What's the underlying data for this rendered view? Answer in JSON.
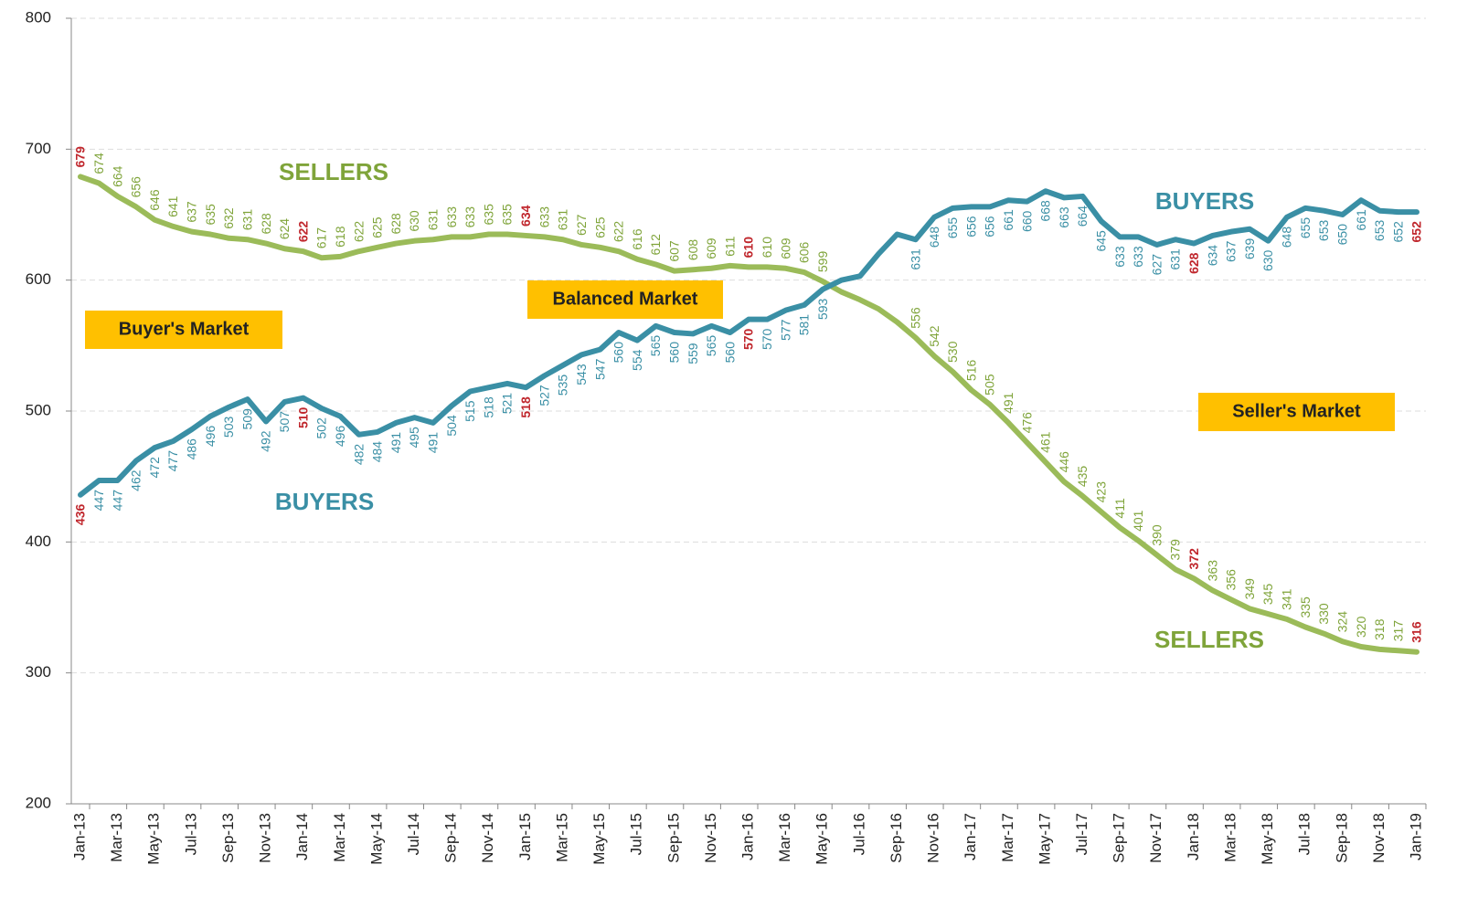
{
  "chart_data": {
    "type": "line",
    "categories": [
      "Jan-13",
      null,
      "Mar-13",
      null,
      "May-13",
      null,
      "Jul-13",
      null,
      "Sep-13",
      null,
      "Nov-13",
      null,
      "Jan-14",
      null,
      "Mar-14",
      null,
      "May-14",
      null,
      "Jul-14",
      null,
      "Sep-14",
      null,
      "Nov-14",
      null,
      "Jan-15",
      null,
      "Mar-15",
      null,
      "May-15",
      null,
      "Jul-15",
      null,
      "Sep-15",
      null,
      "Nov-15",
      null,
      "Jan-16",
      null,
      "Mar-16",
      null,
      "May-16",
      null,
      "Jul-16",
      null,
      "Sep-16",
      null,
      "Nov-16",
      null,
      "Jan-17",
      null,
      "Mar-17",
      null,
      "May-17",
      null,
      "Jul-17",
      null,
      "Sep-17",
      null,
      "Nov-17",
      null,
      "Jan-18",
      null,
      "Mar-18",
      null,
      "May-18",
      null,
      "Jul-18",
      null,
      "Sep-18",
      null,
      "Nov-18",
      null,
      "Jan-19"
    ],
    "series": [
      {
        "name": "SELLERS",
        "color": "#9bbb59",
        "label_color": "#7fa43a",
        "values": [
          679,
          674,
          664,
          656,
          646,
          641,
          637,
          635,
          632,
          631,
          628,
          624,
          622,
          617,
          618,
          622,
          625,
          628,
          630,
          631,
          633,
          633,
          635,
          635,
          634,
          633,
          631,
          627,
          625,
          622,
          616,
          612,
          607,
          608,
          609,
          611,
          610,
          610,
          609,
          606,
          599,
          591,
          585,
          578,
          568,
          556,
          542,
          530,
          516,
          505,
          491,
          476,
          461,
          446,
          435,
          423,
          411,
          401,
          390,
          379,
          372,
          363,
          356,
          349,
          345,
          341,
          335,
          330,
          324,
          320,
          318,
          317,
          316
        ],
        "value_labels": [
          "679",
          "674",
          "664",
          "656",
          "646",
          "641",
          "637",
          "635",
          "632",
          "631",
          "628",
          "624",
          "622",
          "617",
          "618",
          "622",
          "625",
          "628",
          "630",
          "631",
          "633",
          "633",
          "635",
          "635",
          "634",
          "633",
          "631",
          "627",
          "625",
          "622",
          "616",
          "612",
          "607",
          "608",
          "609",
          "611",
          "610",
          "610",
          "609",
          "606",
          "599",
          null,
          null,
          null,
          null,
          "556",
          "542",
          "530",
          "516",
          "505",
          "491",
          "476",
          "461",
          "446",
          "435",
          "423",
          "411",
          "401",
          "390",
          "379",
          "372",
          "363",
          "356",
          "349",
          "345",
          "341",
          "335",
          "330",
          "324",
          "320",
          "318",
          "317",
          "316"
        ]
      },
      {
        "name": "BUYERS",
        "color": "#3a8fa5",
        "label_color": "#3a8fa5",
        "values": [
          436,
          447,
          447,
          462,
          472,
          477,
          486,
          496,
          503,
          509,
          492,
          507,
          510,
          502,
          496,
          482,
          484,
          491,
          495,
          491,
          504,
          515,
          518,
          521,
          518,
          527,
          535,
          543,
          547,
          560,
          554,
          565,
          560,
          559,
          565,
          560,
          570,
          570,
          577,
          581,
          593,
          600,
          603,
          620,
          635,
          631,
          648,
          655,
          656,
          656,
          661,
          660,
          668,
          663,
          664,
          645,
          633,
          633,
          627,
          631,
          628,
          634,
          637,
          639,
          630,
          648,
          655,
          653,
          650,
          661,
          653,
          652,
          652
        ],
        "value_labels": [
          "436",
          "447",
          "447",
          "462",
          "472",
          "477",
          "486",
          "496",
          "503",
          "509",
          "492",
          "507",
          "510",
          "502",
          "496",
          "482",
          "484",
          "491",
          "495",
          "491",
          "504",
          "515",
          "518",
          "521",
          "518",
          "527",
          "535",
          "543",
          "547",
          "560",
          "554",
          "565",
          "560",
          "559",
          "565",
          "560",
          "570",
          "570",
          "577",
          "581",
          "593",
          null,
          null,
          null,
          null,
          "631",
          "648",
          "655",
          "656",
          "656",
          "661",
          "660",
          "668",
          "663",
          "664",
          "645",
          "633",
          "633",
          "627",
          "631",
          "628",
          "634",
          "637",
          "639",
          "630",
          "648",
          "655",
          "653",
          "650",
          "661",
          "653",
          "652",
          "652"
        ]
      }
    ],
    "highlight_indices": [
      0,
      12,
      24,
      36,
      60,
      72
    ],
    "highlight_color": "#c0272d",
    "annotations": [
      "SELLERS",
      "BUYERS",
      "BUYERS",
      "SELLERS"
    ],
    "regions": [
      "Buyer's Market",
      "Balanced Market",
      "Seller's Market"
    ],
    "region_color": "#ffc000",
    "ylim": [
      200,
      800
    ],
    "yticks": [
      200,
      300,
      400,
      500,
      600,
      700,
      800
    ],
    "grid": true
  }
}
